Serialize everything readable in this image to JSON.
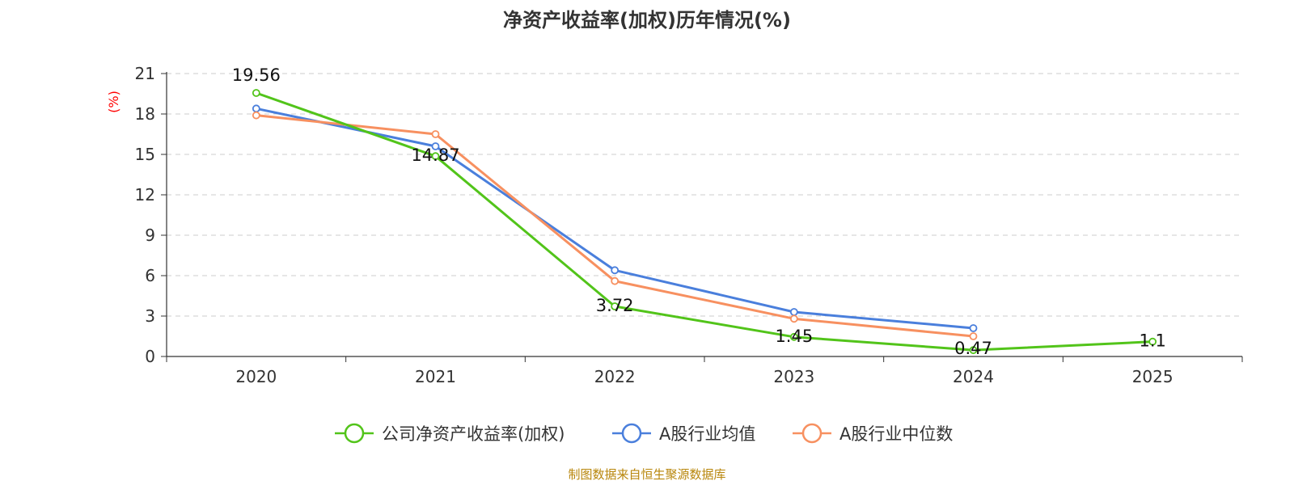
{
  "chart_data": {
    "type": "line",
    "title": "净资产收益率(加权)历年情况(%)",
    "ylabel": "(%)",
    "categories": [
      "2020",
      "2021",
      "2022",
      "2023",
      "2024",
      "2025"
    ],
    "ylim": [
      0,
      21
    ],
    "yticks": [
      0,
      3,
      6,
      9,
      12,
      15,
      18,
      21
    ],
    "grid": true,
    "legend_position": "bottom",
    "series": [
      {
        "name": "公司净资产收益率(加权)",
        "color": "#52c41a",
        "values": [
          19.56,
          14.87,
          3.72,
          1.45,
          0.47,
          1.1
        ],
        "labels": [
          "19.56",
          "14.87",
          "3.72",
          "1.45",
          "0.47",
          "1.1"
        ]
      },
      {
        "name": "A股行业均值",
        "color": "#4a7fdc",
        "values": [
          18.4,
          15.6,
          6.4,
          3.3,
          2.1,
          null
        ]
      },
      {
        "name": "A股行业中位数",
        "color": "#f79060",
        "values": [
          17.9,
          16.5,
          5.6,
          2.8,
          1.5,
          null
        ]
      }
    ],
    "source": "制图数据来自恒生聚源数据库"
  }
}
